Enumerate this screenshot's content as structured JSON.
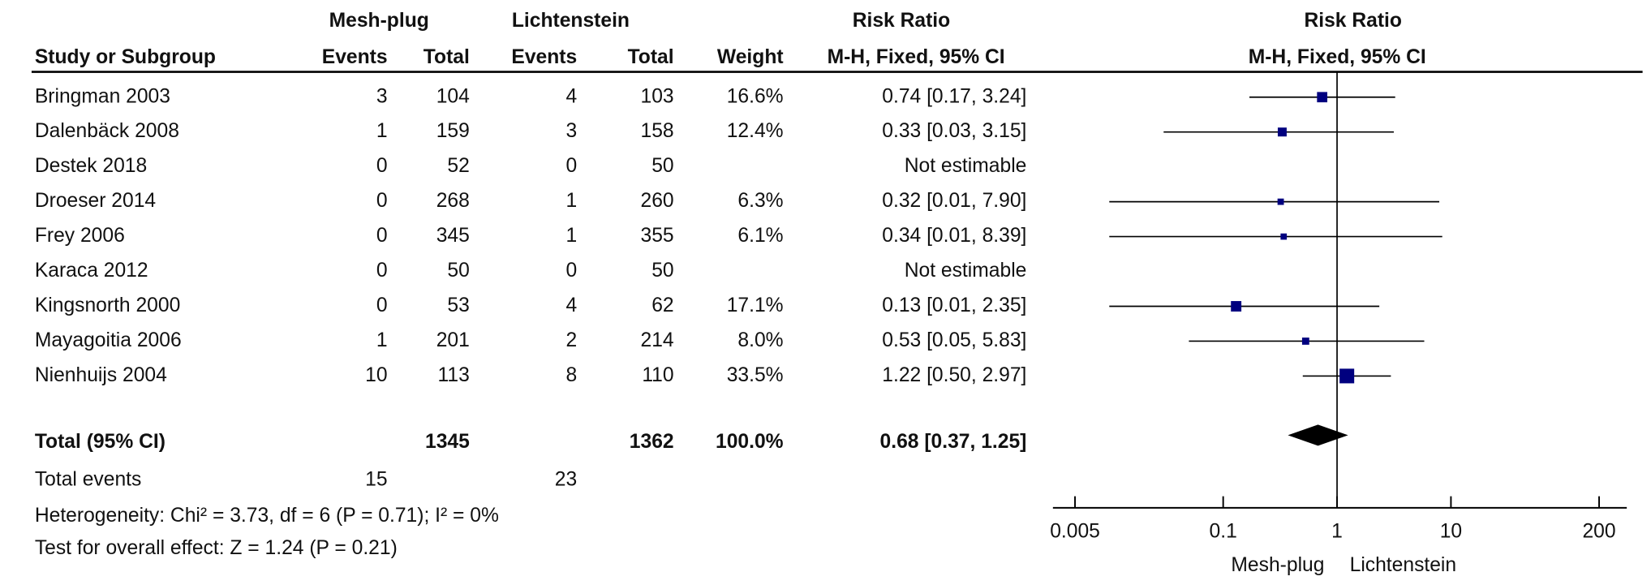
{
  "chart_data": {
    "type": "forest",
    "group_headers": [
      "Mesh-plug",
      "Lichtenstein"
    ],
    "effect_header": "Risk Ratio",
    "method_header": "M-H, Fixed, 95% CI",
    "column_headers": [
      "Study or Subgroup",
      "Events",
      "Total",
      "Events",
      "Total",
      "Weight"
    ],
    "studies": [
      "Bringman 2003",
      "Dalenbäck 2008",
      "Destek 2018",
      "Droeser 2014",
      "Frey 2006",
      "Karaca 2012",
      "Kingsnorth 2000",
      "Mayagoitia 2006",
      "Nienhuijs 2004"
    ],
    "events_1": [
      3,
      1,
      0,
      0,
      0,
      0,
      0,
      1,
      10
    ],
    "total_1": [
      104,
      159,
      52,
      268,
      345,
      50,
      53,
      201,
      113
    ],
    "events_2": [
      4,
      3,
      0,
      1,
      1,
      0,
      4,
      2,
      8
    ],
    "total_2": [
      103,
      158,
      50,
      260,
      355,
      50,
      62,
      214,
      110
    ],
    "weights": [
      16.6,
      12.4,
      null,
      6.3,
      6.1,
      null,
      17.1,
      8.0,
      33.5
    ],
    "weight_labels": [
      "16.6%",
      "12.4%",
      null,
      "6.3%",
      "6.1%",
      null,
      "17.1%",
      "8.0%",
      "33.5%"
    ],
    "ci_labels": [
      "0.74 [0.17, 3.24]",
      "0.33 [0.03, 3.15]",
      "Not estimable",
      "0.32 [0.01, 7.90]",
      "0.34 [0.01, 8.39]",
      "Not estimable",
      "0.13 [0.01, 2.35]",
      "0.53 [0.05, 5.83]",
      "1.22 [0.50, 2.97]"
    ],
    "rr": [
      0.74,
      0.33,
      null,
      0.32,
      0.34,
      null,
      0.13,
      0.53,
      1.22
    ],
    "ci_lower": [
      0.17,
      0.03,
      null,
      0.01,
      0.01,
      null,
      0.01,
      0.05,
      0.5
    ],
    "ci_upper": [
      3.24,
      3.15,
      null,
      7.9,
      8.39,
      null,
      2.35,
      5.83,
      2.97
    ],
    "total": {
      "label": "Total (95% CI)",
      "total_1": 1345,
      "total_2": 1362,
      "weight_label": "100.0%",
      "ci_label": "0.68 [0.37, 1.25]",
      "rr": 0.68,
      "ci_lower": 0.37,
      "ci_upper": 1.25
    },
    "total_events": {
      "label": "Total events",
      "events_1": 15,
      "events_2": 23
    },
    "heterogeneity": "Heterogeneity: Chi² = 3.73, df = 6 (P = 0.71); I² = 0%",
    "overall_effect": "Test for overall effect: Z = 1.24 (P = 0.21)",
    "xscale": "log",
    "xlim": [
      0.0032,
      350
    ],
    "xticks": [
      0.005,
      0.1,
      1,
      10,
      200
    ],
    "favours": [
      "Mesh-plug",
      "Lichtenstein"
    ],
    "color": "#00007f"
  }
}
